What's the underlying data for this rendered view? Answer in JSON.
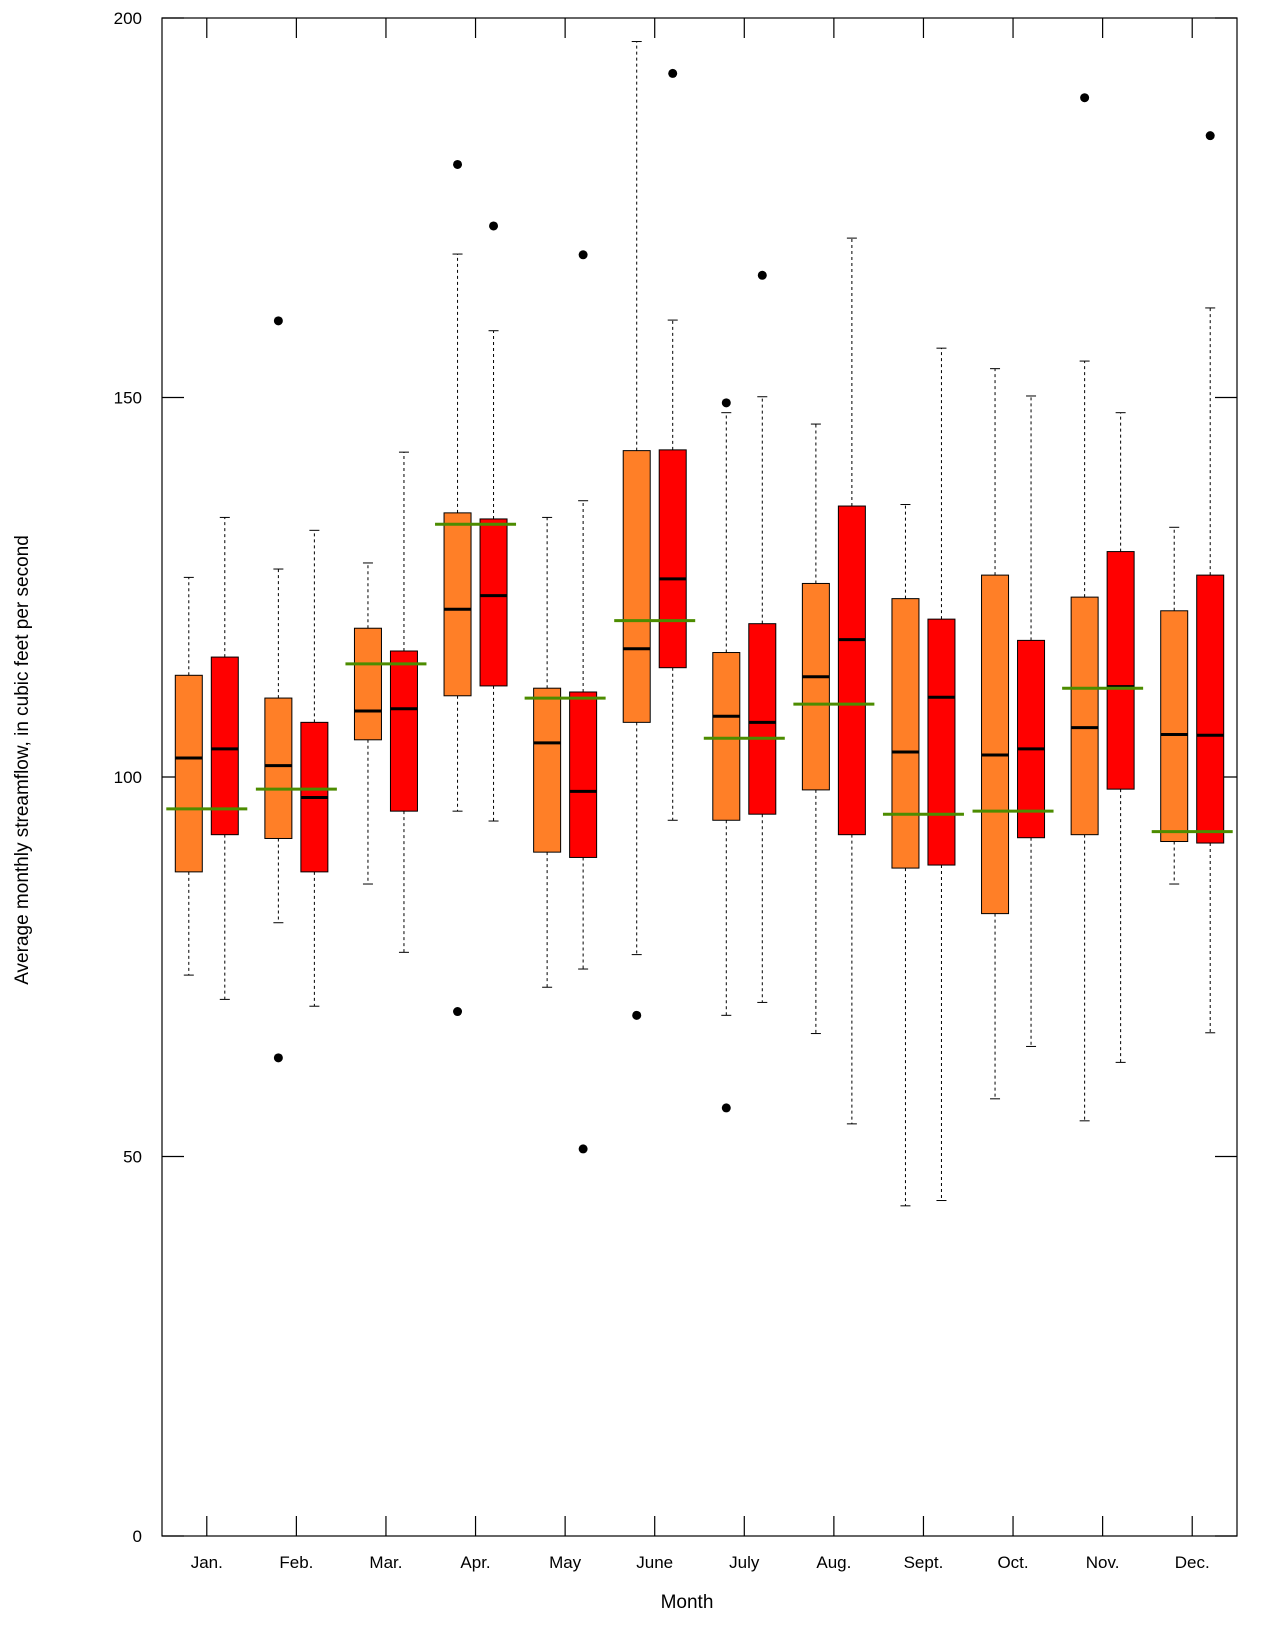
{
  "chart_data": {
    "type": "boxplot",
    "xlabel": "Month",
    "ylabel": "Average monthly streamflow, in cubic feet per second",
    "ylim": [
      0,
      200
    ],
    "yticks": [
      0,
      50,
      100,
      150,
      200
    ],
    "categories": [
      "Jan.",
      "Feb.",
      "Mar.",
      "Apr.",
      "May",
      "June",
      "July",
      "Aug.",
      "Sept.",
      "Oct.",
      "Nov.",
      "Dec."
    ],
    "grid": false,
    "series": [
      {
        "color": "#FF7F27",
        "boxes": [
          {
            "whisker_low": 73.9,
            "q1": 87.5,
            "median": 102.5,
            "q3": 113.4,
            "whisker_high": 126.3,
            "reference_line": 95.8,
            "outliers": []
          },
          {
            "whisker_low": 80.8,
            "q1": 91.9,
            "median": 101.5,
            "q3": 110.4,
            "whisker_high": 127.4,
            "reference_line": 98.4,
            "outliers": [
              63.0,
              160.1
            ]
          },
          {
            "whisker_low": 85.9,
            "q1": 104.9,
            "median": 108.7,
            "q3": 119.6,
            "whisker_high": 128.2,
            "reference_line": 114.9,
            "outliers": []
          },
          {
            "whisker_low": 95.5,
            "q1": 110.7,
            "median": 122.1,
            "q3": 134.8,
            "whisker_high": 168.9,
            "reference_line": 133.3,
            "outliers": [
              69.1,
              180.7
            ]
          },
          {
            "whisker_low": 72.3,
            "q1": 90.1,
            "median": 104.5,
            "q3": 111.7,
            "whisker_high": 134.2,
            "reference_line": 110.4,
            "outliers": []
          },
          {
            "whisker_low": 76.6,
            "q1": 107.2,
            "median": 116.9,
            "q3": 143.0,
            "whisker_high": 196.9,
            "reference_line": 120.6,
            "outliers": [
              68.6
            ]
          },
          {
            "whisker_low": 68.6,
            "q1": 94.3,
            "median": 108.0,
            "q3": 116.4,
            "whisker_high": 148.0,
            "reference_line": 105.1,
            "outliers": [
              56.4,
              149.3
            ]
          },
          {
            "whisker_low": 66.2,
            "q1": 98.3,
            "median": 113.2,
            "q3": 125.5,
            "whisker_high": 146.5,
            "reference_line": 109.6,
            "outliers": []
          },
          {
            "whisker_low": 43.5,
            "q1": 88.0,
            "median": 103.3,
            "q3": 123.5,
            "whisker_high": 135.9,
            "reference_line": 95.1,
            "outliers": []
          },
          {
            "whisker_low": 57.6,
            "q1": 82.0,
            "median": 102.9,
            "q3": 126.6,
            "whisker_high": 153.8,
            "reference_line": 95.5,
            "outliers": []
          },
          {
            "whisker_low": 54.7,
            "q1": 92.4,
            "median": 106.5,
            "q3": 123.7,
            "whisker_high": 154.8,
            "reference_line": 111.7,
            "outliers": [
              189.5
            ]
          },
          {
            "whisker_low": 85.9,
            "q1": 91.5,
            "median": 105.6,
            "q3": 121.9,
            "whisker_high": 132.9,
            "reference_line": 92.8,
            "outliers": []
          }
        ]
      },
      {
        "color": "#FF0000",
        "boxes": [
          {
            "whisker_low": 70.7,
            "q1": 92.4,
            "median": 103.7,
            "q3": 115.8,
            "whisker_high": 134.2,
            "reference_line": 95.8,
            "outliers": []
          },
          {
            "whisker_low": 69.8,
            "q1": 87.5,
            "median": 97.3,
            "q3": 107.2,
            "whisker_high": 132.5,
            "reference_line": 98.4,
            "outliers": []
          },
          {
            "whisker_low": 76.9,
            "q1": 95.5,
            "median": 109.0,
            "q3": 116.6,
            "whisker_high": 142.8,
            "reference_line": 114.9,
            "outliers": []
          },
          {
            "whisker_low": 94.2,
            "q1": 112.0,
            "median": 123.9,
            "q3": 134.0,
            "whisker_high": 158.8,
            "reference_line": 133.3,
            "outliers": [
              172.6
            ]
          },
          {
            "whisker_low": 74.7,
            "q1": 89.4,
            "median": 98.1,
            "q3": 111.2,
            "whisker_high": 136.4,
            "reference_line": 110.4,
            "outliers": [
              51.0,
              168.8
            ]
          },
          {
            "whisker_low": 94.3,
            "q1": 114.4,
            "median": 126.1,
            "q3": 143.1,
            "whisker_high": 160.2,
            "reference_line": 120.6,
            "outliers": [
              192.7
            ]
          },
          {
            "whisker_low": 70.3,
            "q1": 95.1,
            "median": 107.2,
            "q3": 120.2,
            "whisker_high": 150.1,
            "reference_line": 105.1,
            "outliers": [
              166.1
            ]
          },
          {
            "whisker_low": 54.3,
            "q1": 92.4,
            "median": 118.1,
            "q3": 135.7,
            "whisker_high": 171.0,
            "reference_line": 109.6,
            "outliers": []
          },
          {
            "whisker_low": 44.2,
            "q1": 88.4,
            "median": 110.5,
            "q3": 120.8,
            "whisker_high": 156.5,
            "reference_line": 95.1,
            "outliers": []
          },
          {
            "whisker_low": 64.5,
            "q1": 92.0,
            "median": 103.7,
            "q3": 118.0,
            "whisker_high": 150.2,
            "reference_line": 95.5,
            "outliers": []
          },
          {
            "whisker_low": 62.4,
            "q1": 98.4,
            "median": 111.9,
            "q3": 129.7,
            "whisker_high": 148.0,
            "reference_line": 111.7,
            "outliers": []
          },
          {
            "whisker_low": 66.3,
            "q1": 91.3,
            "median": 105.5,
            "q3": 126.6,
            "whisker_high": 161.8,
            "reference_line": 92.8,
            "outliers": [
              184.5
            ]
          }
        ]
      }
    ]
  },
  "colors": {
    "median": "#000000",
    "reference_line": "#4C8C00",
    "axis": "#000000",
    "outlier": "#000000"
  }
}
